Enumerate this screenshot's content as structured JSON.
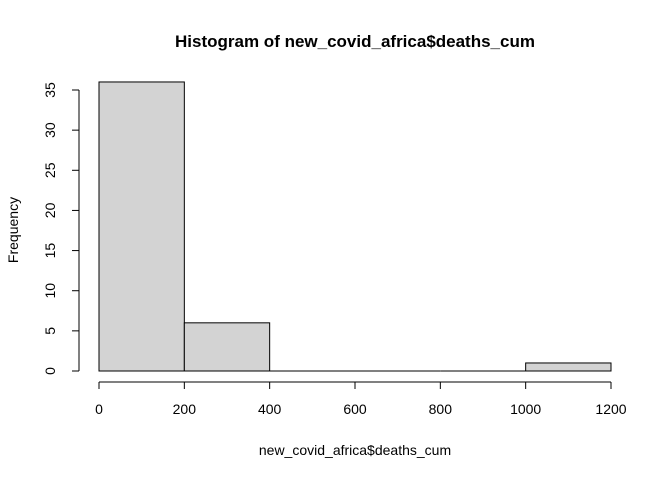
{
  "chart_data": {
    "type": "bar",
    "title": "Histogram of new_covid_africa$deaths_cum",
    "xlabel": "new_covid_africa$deaths_cum",
    "ylabel": "Frequency",
    "bins": [
      {
        "from": 0,
        "to": 200,
        "count": 36
      },
      {
        "from": 200,
        "to": 400,
        "count": 6
      },
      {
        "from": 400,
        "to": 600,
        "count": 0
      },
      {
        "from": 600,
        "to": 800,
        "count": 0
      },
      {
        "from": 800,
        "to": 1000,
        "count": 0
      },
      {
        "from": 1000,
        "to": 1200,
        "count": 1
      }
    ],
    "xlim": [
      0,
      1200
    ],
    "ylim": [
      0,
      35
    ],
    "x_ticks": [
      "0",
      "200",
      "400",
      "600",
      "800",
      "1000",
      "1200"
    ],
    "y_ticks": [
      "0",
      "5",
      "10",
      "15",
      "20",
      "25",
      "30",
      "35"
    ],
    "bar_fill": "#d3d3d3",
    "grid": false,
    "legend": "none"
  }
}
